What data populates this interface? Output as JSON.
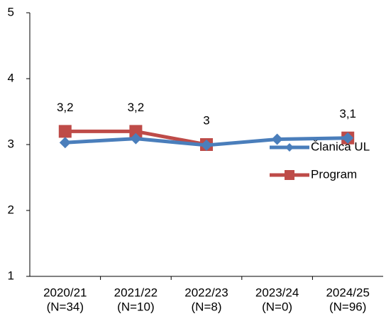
{
  "chart_data": {
    "type": "line",
    "categories": [
      [
        "2020/21",
        "(N=34)"
      ],
      [
        "2021/22",
        "(N=10)"
      ],
      [
        "2022/23",
        "(N=8)"
      ],
      [
        "2023/24",
        "(N=0)"
      ],
      [
        "2024/25",
        "(N=96)"
      ]
    ],
    "series": [
      {
        "name": "Članica UL",
        "color": "#4a7ebb",
        "marker": "diamond",
        "values": [
          3.03,
          3.09,
          2.99,
          3.08,
          3.1
        ]
      },
      {
        "name": "Program",
        "color": "#be4b48",
        "marker": "square",
        "values": [
          3.2,
          3.2,
          3,
          null,
          3.1
        ],
        "value_labels": [
          "3,2",
          "3,2",
          "3",
          null,
          "3,1"
        ]
      }
    ],
    "ylim": [
      1,
      5
    ],
    "yticks": [
      1,
      2,
      3,
      4,
      5
    ],
    "grid": false,
    "legend": "right"
  }
}
